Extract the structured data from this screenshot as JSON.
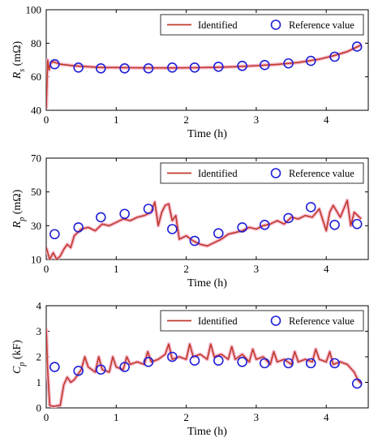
{
  "colors": {
    "identified": "#c0392b",
    "reference": "#1f1fd6",
    "glow": "#f6bcd0"
  },
  "chart_data": [
    {
      "type": "line",
      "name": "Rs",
      "xlabel": "Time (h)",
      "ylabel": {
        "main": "R",
        "sub": "s",
        "unit": " (mΩ)"
      },
      "xlim": [
        0,
        4.6
      ],
      "ylim": [
        40,
        100
      ],
      "xticks": [
        0,
        1,
        2,
        3,
        4
      ],
      "yticks": [
        40,
        60,
        80,
        100
      ],
      "grid": false,
      "legend": {
        "position": "top-right",
        "identified": "Identified",
        "reference": "Reference value"
      },
      "series": [
        {
          "name": "Identified",
          "x": [
            0,
            0.02,
            0.04,
            0.06,
            0.1,
            0.2,
            0.4,
            0.6,
            0.8,
            1.0,
            1.2,
            1.5,
            1.8,
            2.1,
            2.4,
            2.7,
            3.0,
            3.3,
            3.6,
            3.9,
            4.1,
            4.3,
            4.4,
            4.5
          ],
          "y": [
            41,
            70,
            64,
            68,
            69,
            67.5,
            66.5,
            66,
            65.5,
            65.5,
            65.4,
            65.3,
            65.3,
            65.4,
            65.6,
            66,
            66.6,
            67.4,
            68.5,
            70.5,
            72.5,
            75,
            77,
            79
          ]
        },
        {
          "name": "Reference value",
          "x": [
            0.12,
            0.46,
            0.78,
            1.12,
            1.46,
            1.8,
            2.12,
            2.46,
            2.8,
            3.12,
            3.46,
            3.78,
            4.12,
            4.44
          ],
          "y": [
            67.5,
            65.5,
            65,
            65,
            65,
            65.5,
            65.5,
            66,
            66.5,
            67,
            68,
            69.5,
            72,
            78
          ]
        }
      ]
    },
    {
      "type": "line",
      "name": "Rp",
      "xlabel": "Time (h)",
      "ylabel": {
        "main": "R",
        "sub": "p",
        "unit": " (mΩ)"
      },
      "xlim": [
        0,
        4.6
      ],
      "ylim": [
        10,
        70
      ],
      "xticks": [
        0,
        1,
        2,
        3,
        4
      ],
      "yticks": [
        10,
        30,
        50,
        70
      ],
      "grid": false,
      "legend": {
        "position": "top-right",
        "identified": "Identified",
        "reference": "Reference value"
      },
      "series": [
        {
          "name": "Identified",
          "x": [
            0,
            0.05,
            0.1,
            0.15,
            0.2,
            0.25,
            0.3,
            0.35,
            0.4,
            0.45,
            0.5,
            0.6,
            0.7,
            0.8,
            0.9,
            1.0,
            1.1,
            1.2,
            1.3,
            1.4,
            1.5,
            1.55,
            1.6,
            1.65,
            1.7,
            1.75,
            1.8,
            1.85,
            1.9,
            2.0,
            2.1,
            2.2,
            2.3,
            2.4,
            2.5,
            2.6,
            2.7,
            2.8,
            2.9,
            3.0,
            3.1,
            3.2,
            3.3,
            3.4,
            3.5,
            3.6,
            3.7,
            3.8,
            3.9,
            4.0,
            4.05,
            4.1,
            4.2,
            4.3,
            4.35,
            4.4,
            4.5
          ],
          "y": [
            17,
            10,
            14,
            10,
            12,
            16,
            19,
            17,
            24,
            26,
            28,
            29,
            27,
            31,
            30,
            32,
            34,
            33,
            35,
            36,
            38,
            44,
            30,
            38,
            42,
            43,
            33,
            36,
            22,
            24,
            21,
            19,
            18,
            20,
            22,
            25,
            26,
            27,
            29,
            28,
            30,
            31,
            33,
            31,
            35,
            34,
            36,
            35,
            40,
            27,
            38,
            42,
            35,
            45,
            30,
            38,
            34
          ]
        },
        {
          "name": "Reference value",
          "x": [
            0.12,
            0.46,
            0.78,
            1.12,
            1.46,
            1.8,
            2.12,
            2.46,
            2.8,
            3.12,
            3.46,
            3.78,
            4.12,
            4.44
          ],
          "y": [
            25,
            29,
            35,
            37,
            40,
            28,
            21,
            25.5,
            29,
            30.5,
            34.5,
            41,
            30.5,
            31
          ]
        }
      ]
    },
    {
      "type": "line",
      "name": "Cp",
      "xlabel": "Time (h)",
      "ylabel": {
        "main": "C",
        "sub": "p",
        "unit": " (kF)"
      },
      "xlim": [
        0,
        4.6
      ],
      "ylim": [
        0,
        4
      ],
      "xticks": [
        0,
        1,
        2,
        3,
        4
      ],
      "yticks": [
        0,
        1,
        2,
        3,
        4
      ],
      "grid": false,
      "legend": {
        "position": "top-right",
        "identified": "Identified",
        "reference": "Reference value"
      },
      "series": [
        {
          "name": "Identified",
          "x": [
            0,
            0.02,
            0.05,
            0.1,
            0.15,
            0.2,
            0.25,
            0.3,
            0.35,
            0.4,
            0.45,
            0.5,
            0.55,
            0.6,
            0.7,
            0.75,
            0.8,
            0.9,
            0.95,
            1.0,
            1.1,
            1.15,
            1.2,
            1.3,
            1.4,
            1.45,
            1.5,
            1.6,
            1.7,
            1.75,
            1.8,
            1.9,
            2.0,
            2.05,
            2.1,
            2.2,
            2.3,
            2.35,
            2.4,
            2.5,
            2.6,
            2.65,
            2.7,
            2.8,
            2.9,
            2.95,
            3.0,
            3.1,
            3.2,
            3.25,
            3.3,
            3.4,
            3.5,
            3.55,
            3.6,
            3.7,
            3.8,
            3.85,
            3.9,
            4.0,
            4.05,
            4.1,
            4.2,
            4.3,
            4.4,
            4.45,
            4.5
          ],
          "y": [
            3.1,
            1.5,
            0.1,
            0.05,
            0.08,
            0.1,
            0.9,
            1.2,
            1.0,
            1.1,
            1.3,
            1.5,
            2.0,
            1.6,
            1.4,
            2.0,
            1.5,
            1.4,
            2.0,
            1.6,
            1.5,
            2.0,
            1.7,
            1.8,
            1.7,
            2.2,
            1.8,
            1.9,
            2.1,
            2.5,
            1.9,
            2.0,
            1.9,
            2.5,
            2.0,
            2.1,
            1.9,
            2.5,
            2.0,
            2.1,
            1.9,
            2.4,
            1.9,
            2.1,
            1.8,
            2.3,
            1.9,
            2.0,
            1.7,
            2.2,
            1.8,
            1.9,
            1.7,
            2.2,
            1.8,
            1.9,
            1.8,
            2.3,
            1.9,
            1.8,
            2.2,
            1.7,
            1.8,
            1.7,
            1.4,
            1.1,
            0.95
          ]
        },
        {
          "name": "Reference value",
          "x": [
            0.12,
            0.46,
            0.78,
            1.12,
            1.46,
            1.8,
            2.12,
            2.46,
            2.8,
            3.12,
            3.46,
            3.78,
            4.12,
            4.44
          ],
          "y": [
            1.6,
            1.45,
            1.5,
            1.6,
            1.8,
            2.0,
            1.85,
            1.85,
            1.8,
            1.75,
            1.75,
            1.75,
            1.75,
            0.95
          ]
        }
      ]
    }
  ]
}
